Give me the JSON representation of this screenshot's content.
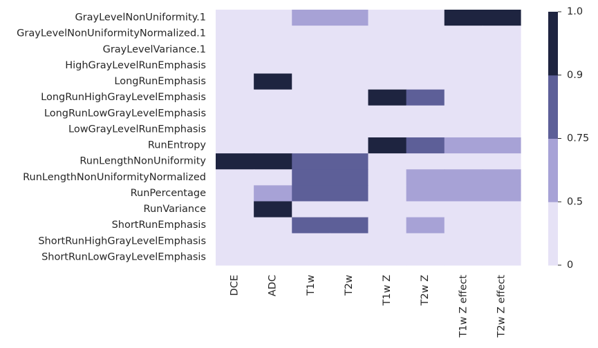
{
  "chart_data": {
    "type": "heatmap",
    "rows": [
      "GrayLevelNonUniformity.1",
      "GrayLevelNonUniformityNormalized.1",
      "GrayLevelVariance.1",
      "HighGrayLevelRunEmphasis",
      "LongRunEmphasis",
      "LongRunHighGrayLevelEmphasis",
      "LongRunLowGrayLevelEmphasis",
      "LowGrayLevelRunEmphasis",
      "RunEntropy",
      "RunLengthNonUniformity",
      "RunLengthNonUniformityNormalized",
      "RunPercentage",
      "RunVariance",
      "ShortRunEmphasis",
      "ShortRunHighGrayLevelEmphasis",
      "ShortRunLowGrayLevelEmphasis"
    ],
    "columns": [
      "DCE",
      "ADC",
      "T1w",
      "T2w",
      "T1w Z",
      "T2w Z",
      "T1w Z effect",
      "T2w Z effect"
    ],
    "values": [
      [
        0.25,
        0.25,
        0.6,
        0.6,
        0.25,
        0.25,
        0.95,
        0.95
      ],
      [
        0.25,
        0.25,
        0.25,
        0.25,
        0.25,
        0.25,
        0.25,
        0.25
      ],
      [
        0.25,
        0.25,
        0.25,
        0.25,
        0.25,
        0.25,
        0.25,
        0.25
      ],
      [
        0.25,
        0.25,
        0.25,
        0.25,
        0.25,
        0.25,
        0.25,
        0.25
      ],
      [
        0.25,
        0.95,
        0.25,
        0.25,
        0.25,
        0.25,
        0.25,
        0.25
      ],
      [
        0.25,
        0.25,
        0.25,
        0.25,
        0.95,
        0.8,
        0.25,
        0.25
      ],
      [
        0.25,
        0.25,
        0.25,
        0.25,
        0.25,
        0.25,
        0.25,
        0.25
      ],
      [
        0.25,
        0.25,
        0.25,
        0.25,
        0.25,
        0.25,
        0.25,
        0.25
      ],
      [
        0.25,
        0.25,
        0.25,
        0.25,
        0.95,
        0.8,
        0.6,
        0.6
      ],
      [
        0.95,
        0.95,
        0.8,
        0.8,
        0.25,
        0.25,
        0.25,
        0.25
      ],
      [
        0.25,
        0.25,
        0.8,
        0.8,
        0.25,
        0.6,
        0.6,
        0.6
      ],
      [
        0.25,
        0.6,
        0.8,
        0.8,
        0.25,
        0.6,
        0.6,
        0.6
      ],
      [
        0.25,
        0.95,
        0.25,
        0.25,
        0.25,
        0.25,
        0.25,
        0.25
      ],
      [
        0.25,
        0.25,
        0.8,
        0.8,
        0.25,
        0.6,
        0.25,
        0.25
      ],
      [
        0.25,
        0.25,
        0.25,
        0.25,
        0.25,
        0.25,
        0.25,
        0.25
      ],
      [
        0.25,
        0.25,
        0.25,
        0.25,
        0.25,
        0.25,
        0.25,
        0.25
      ]
    ],
    "colorbar": {
      "ticks": [
        "0",
        "0.5",
        "0.75",
        "0.9",
        "1.0"
      ],
      "bins": [
        {
          "from": 0,
          "to": 0.5,
          "color": "#e6e2f6"
        },
        {
          "from": 0.5,
          "to": 0.75,
          "color": "#a7a2d6"
        },
        {
          "from": 0.75,
          "to": 0.9,
          "color": "#5d5f98"
        },
        {
          "from": 0.9,
          "to": 1.0,
          "color": "#1e2440"
        }
      ]
    }
  }
}
